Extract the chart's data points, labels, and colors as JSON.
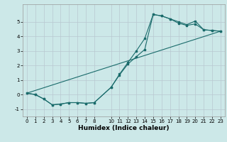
{
  "xlabel": "Humidex (Indice chaleur)",
  "bg_color": "#cce8e8",
  "grid_color": "#b8c8d0",
  "line_color": "#1a6b6b",
  "line1_x": [
    0,
    1,
    2,
    3,
    4,
    5,
    6,
    7,
    8,
    10,
    11,
    12,
    13,
    14,
    15,
    16,
    17,
    18,
    19,
    20,
    21,
    22,
    23
  ],
  "line1_y": [
    0.1,
    0.0,
    -0.3,
    -0.7,
    -0.65,
    -0.55,
    -0.55,
    -0.6,
    -0.55,
    0.5,
    1.4,
    2.2,
    3.0,
    3.85,
    5.5,
    5.4,
    5.2,
    5.0,
    4.8,
    5.05,
    4.45,
    4.4,
    4.35
  ],
  "line2_x": [
    0,
    1,
    2,
    3,
    4,
    5,
    6,
    7,
    8,
    10,
    11,
    12,
    13,
    14,
    15,
    16,
    17,
    18,
    19,
    20,
    21,
    22,
    23
  ],
  "line2_y": [
    0.1,
    0.0,
    -0.3,
    -0.7,
    -0.65,
    -0.55,
    -0.55,
    -0.6,
    -0.55,
    0.5,
    1.35,
    2.1,
    2.6,
    3.1,
    5.5,
    5.4,
    5.2,
    4.9,
    4.75,
    4.85,
    4.45,
    4.4,
    4.35
  ],
  "line3_x": [
    0,
    23
  ],
  "line3_y": [
    0.1,
    4.35
  ],
  "ylim": [
    -1.5,
    6.2
  ],
  "xlim": [
    -0.5,
    23.5
  ],
  "xticks": [
    0,
    1,
    2,
    3,
    4,
    5,
    6,
    7,
    8,
    10,
    11,
    12,
    13,
    14,
    15,
    16,
    17,
    18,
    19,
    20,
    21,
    22,
    23
  ],
  "yticks": [
    -1,
    0,
    1,
    2,
    3,
    4,
    5
  ],
  "xtick_labels": [
    "0",
    "1",
    "2",
    "3",
    "4",
    "5",
    "6",
    "7",
    "8",
    "10",
    "11",
    "12",
    "13",
    "14",
    "15",
    "16",
    "17",
    "18",
    "19",
    "20",
    "21",
    "22",
    "23"
  ],
  "marker_size": 1.8,
  "line_width": 0.8,
  "xlabel_fontsize": 6.5,
  "tick_fontsize": 5.0,
  "grid_linewidth": 0.5
}
